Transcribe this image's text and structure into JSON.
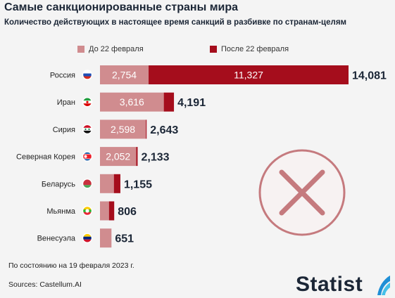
{
  "header": {
    "title": "Самые санкционированные страны мира",
    "subtitle": "Количество действующих в настоящее время санкций в разбивке по странам-целям"
  },
  "legend": {
    "before_label": "До 22 февраля",
    "after_label": "После 22 февраля"
  },
  "colors": {
    "before": "#d08c8f",
    "after": "#a50d1c",
    "text": "#1b2636",
    "background": "#f4f4f4",
    "no_symbol": "#c57a7e"
  },
  "footer": {
    "date_note": "По состоянию на 19 февраля 2023 г.",
    "source": "Sources: Castellum.AI",
    "brand": "Statist"
  },
  "chart_data": {
    "type": "bar",
    "orientation": "horizontal",
    "stacked": true,
    "title": "Самые санкционированные страны мира",
    "subtitle": "Количество действующих в настоящее время санкций в разбивке по странам-целям",
    "categories": [
      "Россия",
      "Иран",
      "Сирия",
      "Северная Корея",
      "Беларусь",
      "Мьянма",
      "Венесуэла"
    ],
    "series": [
      {
        "name": "До 22 февраля",
        "values": [
          2754,
          3616,
          2598,
          2052,
          788,
          510,
          651
        ]
      },
      {
        "name": "После 22 февраля",
        "values": [
          11327,
          575,
          45,
          81,
          367,
          296,
          0
        ]
      }
    ],
    "segment_labels": [
      [
        "2,754",
        "11,327"
      ],
      [
        "3,616",
        ""
      ],
      [
        "2,598",
        ""
      ],
      [
        "2,052",
        ""
      ],
      [
        "",
        ""
      ],
      [
        "",
        ""
      ],
      [
        "",
        ""
      ]
    ],
    "totals": [
      "14,081",
      "4,191",
      "2,643",
      "2,133",
      "1,155",
      "806",
      "651"
    ],
    "flags": [
      "russia",
      "iran",
      "syria",
      "north-korea",
      "belarus",
      "myanmar",
      "venezuela"
    ],
    "xlim": [
      0,
      14081
    ],
    "legend_position": "top",
    "grid": false
  }
}
